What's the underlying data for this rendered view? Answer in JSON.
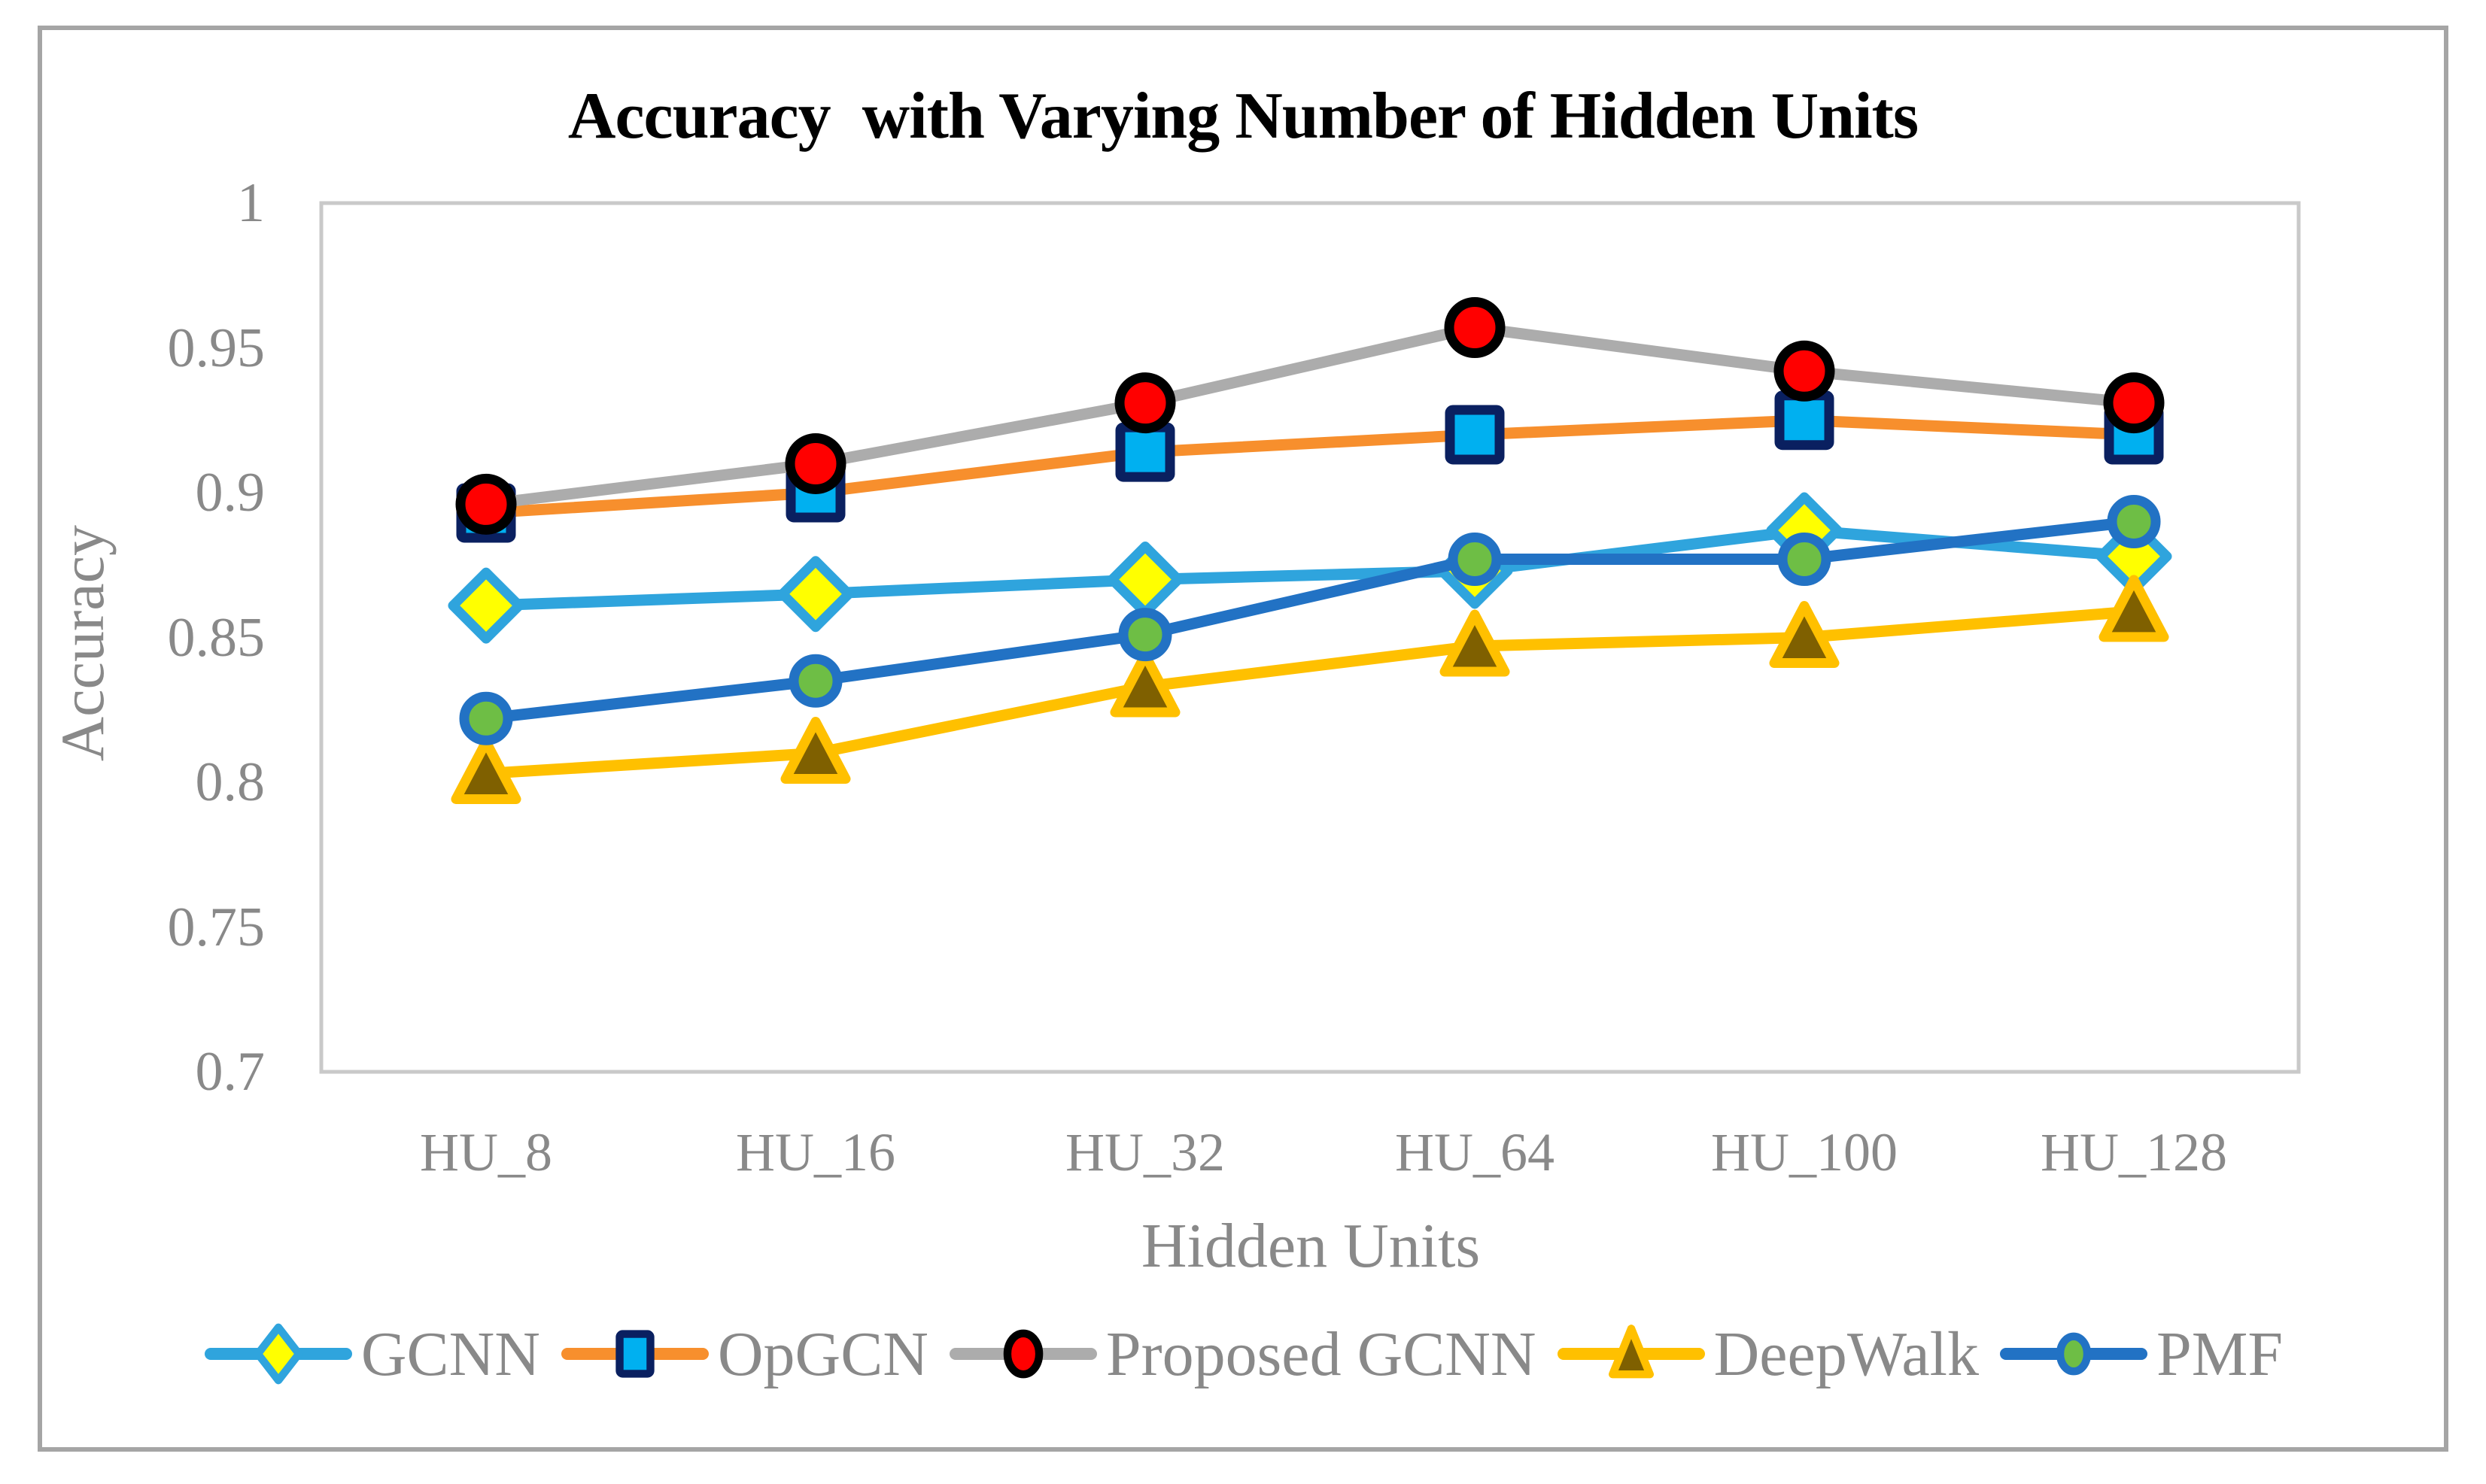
{
  "figure": {
    "title": "Accuracy  with Varying Number of Hidden Units",
    "text_color": "#898989",
    "title_color": "#000000",
    "plot_border_color": "#c9c9c9",
    "frame_border_color": "#a5a5a5",
    "background_color": "#ffffff"
  },
  "chart_data": {
    "type": "line",
    "title": "Accuracy  with Varying Number of Hidden Units",
    "xlabel": "Hidden Units",
    "ylabel": "Accuracy",
    "categories": [
      "HU_8",
      "HU_16",
      "HU_32",
      "HU_64",
      "HU_100",
      "HU_128"
    ],
    "y_tick_labels": [
      "1",
      "0.95",
      "0.9",
      "0.85",
      "0.8",
      "0.75",
      "0.7"
    ],
    "ylim": [
      0.7,
      1.0
    ],
    "grid": false,
    "legend_position": "bottom",
    "series": [
      {
        "name": "GCNN",
        "marker": "diamond",
        "line_color": "#2fa4dd",
        "marker_fill": "#ffff00",
        "marker_stroke": "#2fa4dd",
        "values": [
          0.861,
          0.865,
          0.87,
          0.873,
          0.887,
          0.878
        ]
      },
      {
        "name": "OpGCN",
        "marker": "square",
        "line_color": "#f78f2d",
        "marker_fill": "#00b0f0",
        "marker_stroke": "#0a2060",
        "values": [
          0.893,
          0.9,
          0.914,
          0.92,
          0.925,
          0.92
        ]
      },
      {
        "name": "Proposed GCNN",
        "marker": "circle",
        "line_color": "#acacac",
        "marker_fill": "#ff0000",
        "marker_stroke": "#000000",
        "values": [
          0.896,
          0.91,
          0.931,
          0.957,
          0.942,
          0.931
        ]
      },
      {
        "name": "DeepWalk",
        "marker": "triangle",
        "line_color": "#ffc000",
        "marker_fill": "#7f6000",
        "marker_stroke": "#ffc000",
        "values": [
          0.803,
          0.81,
          0.833,
          0.847,
          0.85,
          0.859
        ]
      },
      {
        "name": "PMF",
        "marker": "circle-small",
        "line_color": "#2272c4",
        "marker_fill": "#6ebe45",
        "marker_stroke": "#2272c4",
        "values": [
          0.822,
          0.835,
          0.851,
          0.877,
          0.877,
          0.89
        ]
      }
    ]
  }
}
